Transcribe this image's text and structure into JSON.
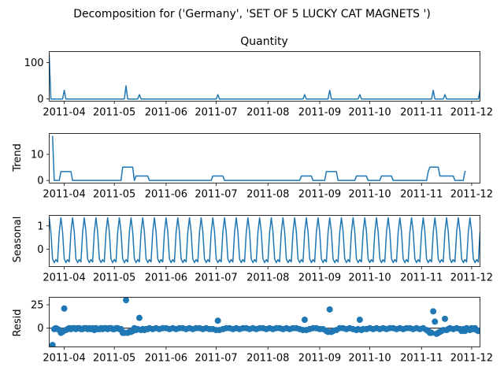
{
  "figure_title": "Decomposition for ('Germany', 'SET OF 5 LUCKY CAT MAGNETS ')",
  "colors": {
    "line": "#1f77b4",
    "marker": "#1f77b4",
    "axis": "#000000",
    "zero_line": "#000000"
  },
  "chart_data": [
    {
      "type": "line",
      "id": "observed",
      "title": "Quantity",
      "ylabel": "",
      "xlim": [
        0,
        258
      ],
      "ylim": [
        -6,
        130
      ],
      "x_ticks": [
        {
          "t": 9,
          "label": "2011-04"
        },
        {
          "t": 39,
          "label": "2011-05"
        },
        {
          "t": 70,
          "label": "2011-06"
        },
        {
          "t": 100,
          "label": "2011-07"
        },
        {
          "t": 131,
          "label": "2011-08"
        },
        {
          "t": 162,
          "label": "2011-09"
        },
        {
          "t": 192,
          "label": "2011-10"
        },
        {
          "t": 223,
          "label": "2011-11"
        },
        {
          "t": 253,
          "label": "2011-12"
        }
      ],
      "y_ticks": [
        {
          "v": 0,
          "label": "0"
        },
        {
          "v": 100,
          "label": "100"
        }
      ],
      "base": 0,
      "spikes": [
        [
          0,
          120
        ],
        [
          9,
          24
        ],
        [
          46,
          36
        ],
        [
          54,
          12
        ],
        [
          101,
          12
        ],
        [
          153,
          12
        ],
        [
          168,
          24
        ],
        [
          186,
          12
        ],
        [
          230,
          24
        ],
        [
          237,
          12
        ],
        [
          258,
          24
        ]
      ]
    },
    {
      "type": "line",
      "id": "trend",
      "title": "",
      "ylabel": "Trend",
      "xlim": [
        0,
        258
      ],
      "ylim": [
        -1,
        18
      ],
      "x_ticks": [
        {
          "t": 9,
          "label": "2011-04"
        },
        {
          "t": 39,
          "label": "2011-05"
        },
        {
          "t": 70,
          "label": "2011-06"
        },
        {
          "t": 100,
          "label": "2011-07"
        },
        {
          "t": 131,
          "label": "2011-08"
        },
        {
          "t": 162,
          "label": "2011-09"
        },
        {
          "t": 192,
          "label": "2011-10"
        },
        {
          "t": 223,
          "label": "2011-11"
        },
        {
          "t": 253,
          "label": "2011-12"
        }
      ],
      "y_ticks": [
        {
          "v": 0,
          "label": "0"
        },
        {
          "v": 10,
          "label": "10"
        }
      ],
      "points": [
        [
          2,
          17
        ],
        [
          3,
          0
        ],
        [
          6,
          0
        ],
        [
          7,
          3.4
        ],
        [
          13,
          3.4
        ],
        [
          14,
          0
        ],
        [
          43,
          0
        ],
        [
          44,
          5.1
        ],
        [
          50,
          5.1
        ],
        [
          51,
          0
        ],
        [
          52,
          1.7
        ],
        [
          59,
          1.7
        ],
        [
          60,
          0
        ],
        [
          97,
          0
        ],
        [
          98,
          1.7
        ],
        [
          104,
          1.7
        ],
        [
          105,
          0
        ],
        [
          150,
          0
        ],
        [
          151,
          1.7
        ],
        [
          157,
          1.7
        ],
        [
          158,
          0
        ],
        [
          165,
          0
        ],
        [
          166,
          3.4
        ],
        [
          172,
          3.4
        ],
        [
          173,
          0
        ],
        [
          183,
          0
        ],
        [
          184,
          1.7
        ],
        [
          190,
          1.7
        ],
        [
          191,
          0
        ],
        [
          198,
          0
        ],
        [
          199,
          1.7
        ],
        [
          205,
          1.7
        ],
        [
          206,
          0
        ],
        [
          226,
          0
        ],
        [
          227,
          3.4
        ],
        [
          228,
          5.1
        ],
        [
          233,
          5.1
        ],
        [
          234,
          1.7
        ],
        [
          242,
          1.7
        ],
        [
          243,
          0
        ],
        [
          248,
          0
        ],
        [
          249,
          3.4
        ],
        [
          249.5,
          3.4
        ]
      ]
    },
    {
      "type": "line",
      "id": "seasonal",
      "title": "",
      "ylabel": "Seasonal",
      "xlim": [
        0,
        258
      ],
      "ylim": [
        -0.75,
        1.45
      ],
      "x_ticks": [
        {
          "t": 9,
          "label": "2011-04"
        },
        {
          "t": 39,
          "label": "2011-05"
        },
        {
          "t": 70,
          "label": "2011-06"
        },
        {
          "t": 100,
          "label": "2011-07"
        },
        {
          "t": 131,
          "label": "2011-08"
        },
        {
          "t": 162,
          "label": "2011-09"
        },
        {
          "t": 192,
          "label": "2011-10"
        },
        {
          "t": 223,
          "label": "2011-11"
        },
        {
          "t": 253,
          "label": "2011-12"
        }
      ],
      "y_ticks": [
        {
          "v": 0,
          "label": "0"
        },
        {
          "v": 1,
          "label": "1"
        }
      ],
      "period": 7,
      "pattern": [
        1.35,
        0.75,
        -0.42,
        -0.58,
        -0.45,
        -0.55,
        0.72
      ]
    },
    {
      "type": "scatter",
      "id": "resid",
      "title": "",
      "ylabel": "Resid",
      "xlim": [
        0,
        258
      ],
      "ylim": [
        -20,
        33
      ],
      "x_ticks": [
        {
          "t": 9,
          "label": "2011-04"
        },
        {
          "t": 39,
          "label": "2011-05"
        },
        {
          "t": 70,
          "label": "2011-06"
        },
        {
          "t": 100,
          "label": "2011-07"
        },
        {
          "t": 131,
          "label": "2011-08"
        },
        {
          "t": 162,
          "label": "2011-09"
        },
        {
          "t": 192,
          "label": "2011-10"
        },
        {
          "t": 223,
          "label": "2011-11"
        },
        {
          "t": 253,
          "label": "2011-12"
        }
      ],
      "y_ticks": [
        {
          "v": 0,
          "label": "0"
        },
        {
          "v": 25,
          "label": "25"
        }
      ],
      "points": [
        [
          2,
          -18
        ],
        [
          3,
          -1
        ],
        [
          4,
          0
        ],
        [
          5,
          -1
        ],
        [
          6,
          -2
        ],
        [
          7,
          -5
        ],
        [
          8,
          -4
        ],
        [
          9,
          21
        ],
        [
          10,
          -2
        ],
        [
          11,
          -1
        ],
        [
          12,
          0
        ],
        [
          13,
          -1
        ],
        [
          14,
          0
        ],
        [
          15,
          0
        ],
        [
          16,
          -1
        ],
        [
          17,
          0
        ],
        [
          18,
          0
        ],
        [
          19,
          -1
        ],
        [
          20,
          -1
        ],
        [
          21,
          0
        ],
        [
          22,
          0
        ],
        [
          23,
          -1
        ],
        [
          24,
          0
        ],
        [
          25,
          -1
        ],
        [
          26,
          0
        ],
        [
          27,
          -2
        ],
        [
          28,
          0
        ],
        [
          29,
          -1
        ],
        [
          30,
          -1
        ],
        [
          31,
          0
        ],
        [
          32,
          -1
        ],
        [
          33,
          0
        ],
        [
          34,
          0
        ],
        [
          35,
          -1
        ],
        [
          36,
          0
        ],
        [
          37,
          0
        ],
        [
          38,
          -1
        ],
        [
          39,
          -1
        ],
        [
          40,
          0
        ],
        [
          41,
          0
        ],
        [
          42,
          -1
        ],
        [
          43,
          -1
        ],
        [
          44,
          -5
        ],
        [
          45,
          -5
        ],
        [
          46,
          30
        ],
        [
          47,
          -5
        ],
        [
          48,
          -4
        ],
        [
          49,
          -4
        ],
        [
          50,
          -3
        ],
        [
          51,
          0
        ],
        [
          52,
          -2
        ],
        [
          53,
          -1
        ],
        [
          54,
          11
        ],
        [
          55,
          -2
        ],
        [
          56,
          -1
        ],
        [
          57,
          -2
        ],
        [
          58,
          -1
        ],
        [
          59,
          -1
        ],
        [
          60,
          0
        ],
        [
          62,
          -1
        ],
        [
          64,
          0
        ],
        [
          66,
          -1
        ],
        [
          68,
          0
        ],
        [
          70,
          0
        ],
        [
          72,
          -1
        ],
        [
          74,
          0
        ],
        [
          76,
          -1
        ],
        [
          78,
          0
        ],
        [
          80,
          0
        ],
        [
          82,
          -1
        ],
        [
          84,
          0
        ],
        [
          86,
          -1
        ],
        [
          88,
          0
        ],
        [
          90,
          0
        ],
        [
          92,
          -1
        ],
        [
          94,
          0
        ],
        [
          96,
          -1
        ],
        [
          98,
          -1
        ],
        [
          100,
          -2
        ],
        [
          101,
          8
        ],
        [
          102,
          -2
        ],
        [
          104,
          -1
        ],
        [
          106,
          0
        ],
        [
          108,
          0
        ],
        [
          110,
          -1
        ],
        [
          112,
          0
        ],
        [
          114,
          -1
        ],
        [
          116,
          0
        ],
        [
          118,
          0
        ],
        [
          120,
          -1
        ],
        [
          122,
          0
        ],
        [
          124,
          -1
        ],
        [
          126,
          0
        ],
        [
          128,
          0
        ],
        [
          130,
          -1
        ],
        [
          132,
          0
        ],
        [
          134,
          -1
        ],
        [
          136,
          0
        ],
        [
          138,
          0
        ],
        [
          140,
          -1
        ],
        [
          142,
          0
        ],
        [
          144,
          -1
        ],
        [
          146,
          0
        ],
        [
          148,
          0
        ],
        [
          150,
          -1
        ],
        [
          152,
          -2
        ],
        [
          153,
          9
        ],
        [
          154,
          -2
        ],
        [
          156,
          -1
        ],
        [
          158,
          0
        ],
        [
          160,
          0
        ],
        [
          162,
          -1
        ],
        [
          164,
          -1
        ],
        [
          166,
          -3
        ],
        [
          167,
          -4
        ],
        [
          168,
          20
        ],
        [
          169,
          -4
        ],
        [
          170,
          -3
        ],
        [
          172,
          -2
        ],
        [
          174,
          0
        ],
        [
          176,
          0
        ],
        [
          178,
          -1
        ],
        [
          180,
          0
        ],
        [
          182,
          -1
        ],
        [
          184,
          -2
        ],
        [
          185,
          -1
        ],
        [
          186,
          9
        ],
        [
          187,
          -2
        ],
        [
          188,
          -1
        ],
        [
          190,
          -1
        ],
        [
          192,
          0
        ],
        [
          194,
          -1
        ],
        [
          196,
          0
        ],
        [
          198,
          -1
        ],
        [
          200,
          0
        ],
        [
          202,
          -1
        ],
        [
          204,
          0
        ],
        [
          206,
          0
        ],
        [
          208,
          -1
        ],
        [
          210,
          0
        ],
        [
          212,
          -1
        ],
        [
          214,
          0
        ],
        [
          216,
          0
        ],
        [
          218,
          -1
        ],
        [
          220,
          0
        ],
        [
          222,
          -1
        ],
        [
          224,
          0
        ],
        [
          226,
          -2
        ],
        [
          227,
          -3
        ],
        [
          228,
          -5
        ],
        [
          229,
          -5
        ],
        [
          230,
          18
        ],
        [
          231,
          7
        ],
        [
          232,
          -6
        ],
        [
          233,
          -5
        ],
        [
          234,
          -4
        ],
        [
          235,
          -3
        ],
        [
          236,
          -2
        ],
        [
          237,
          10
        ],
        [
          238,
          -2
        ],
        [
          239,
          -1
        ],
        [
          240,
          0
        ],
        [
          242,
          -1
        ],
        [
          244,
          0
        ],
        [
          246,
          -1
        ],
        [
          247,
          -3
        ],
        [
          248,
          -1
        ],
        [
          249,
          -3
        ],
        [
          250,
          0
        ],
        [
          251,
          -1
        ],
        [
          252,
          -2
        ],
        [
          253,
          0
        ],
        [
          254,
          -1
        ],
        [
          255,
          0
        ],
        [
          256,
          -2
        ],
        [
          257,
          -3
        ]
      ]
    }
  ]
}
